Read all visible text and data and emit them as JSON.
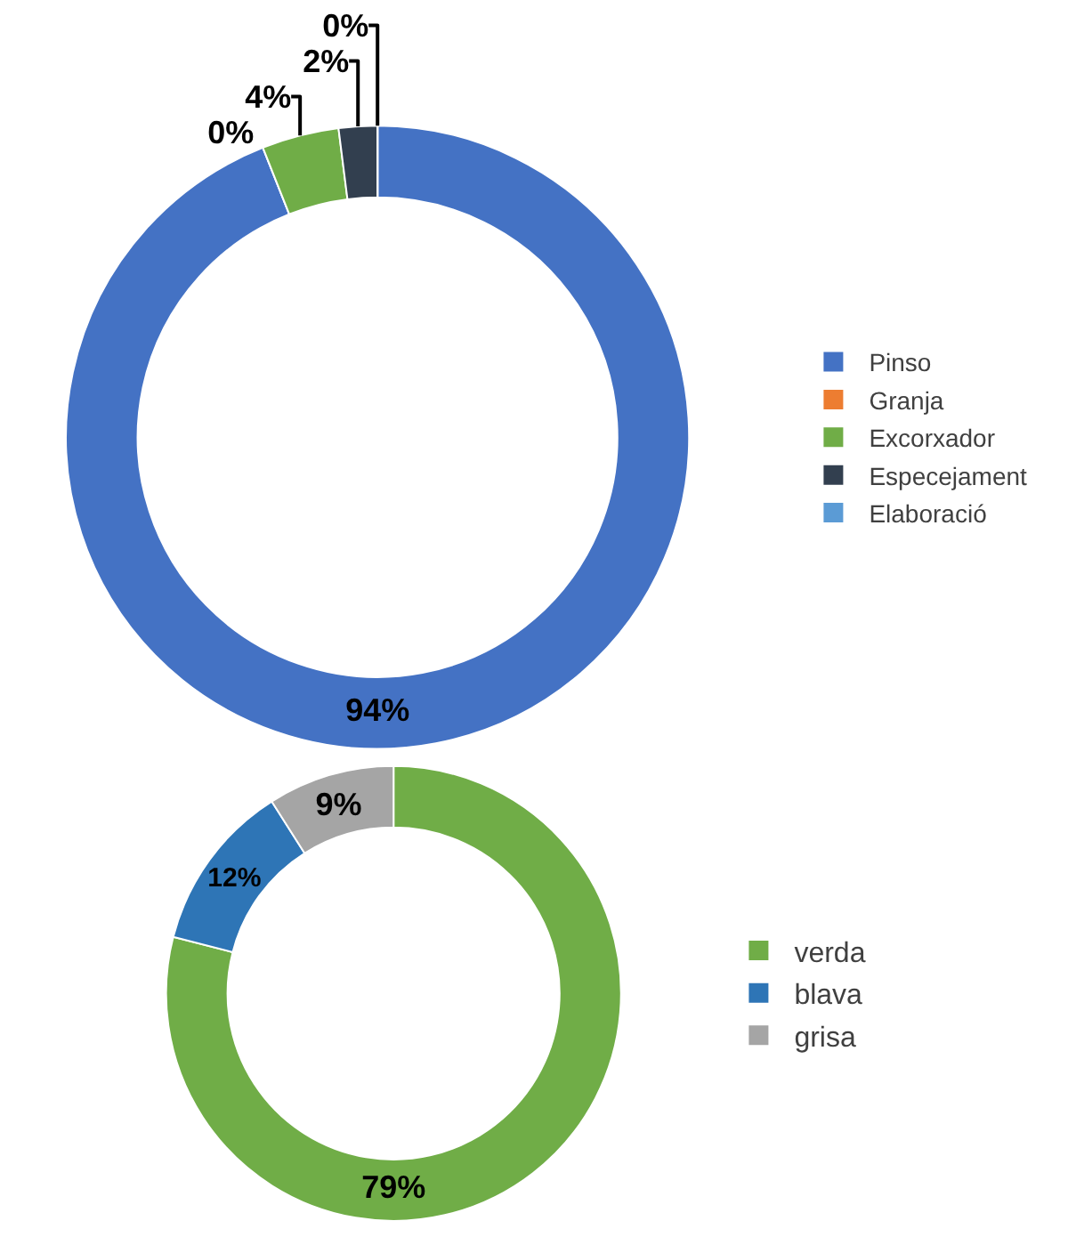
{
  "chart_data": [
    {
      "type": "donut",
      "categories": [
        "Pinso",
        "Granja",
        "Excorxador",
        "Especejament",
        "Elaboració"
      ],
      "values": [
        94,
        0,
        4,
        2,
        0
      ],
      "colors": [
        "#4472c4",
        "#ed7d31",
        "#70ad47",
        "#323f4f",
        "#5b9bd5"
      ],
      "value_labels": [
        "94%",
        "0%",
        "4%",
        "2%",
        "0%"
      ],
      "legend": "right"
    },
    {
      "type": "donut",
      "categories": [
        "verda",
        "blava",
        "grisa"
      ],
      "values": [
        79,
        12,
        9
      ],
      "colors": [
        "#70ad47",
        "#2e75b6",
        "#a5a5a5"
      ],
      "value_labels": [
        "79%",
        "12%",
        "9%"
      ],
      "legend": "right"
    }
  ]
}
